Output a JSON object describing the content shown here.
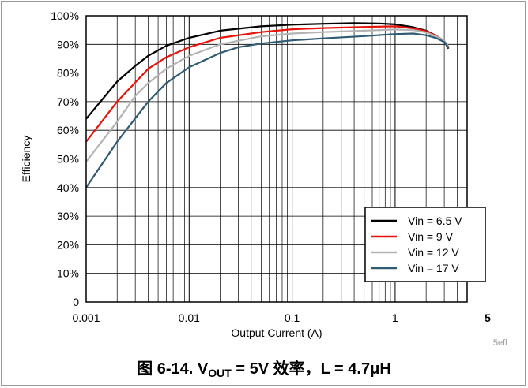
{
  "chart_data": {
    "type": "line",
    "xlabel": "Output Current (A)",
    "ylabel": "Efficiency",
    "x_scale": "log",
    "xlim": [
      0.001,
      5
    ],
    "ylim": [
      0,
      100
    ],
    "x_ticks": [
      {
        "value": 0.001,
        "label": "0.001"
      },
      {
        "value": 0.01,
        "label": "0.01"
      },
      {
        "value": 0.1,
        "label": "0.1"
      },
      {
        "value": 1,
        "label": "1"
      },
      {
        "value": 5,
        "label": "5"
      }
    ],
    "y_ticks": [
      {
        "value": 0,
        "label": "0"
      },
      {
        "value": 10,
        "label": "10%"
      },
      {
        "value": 20,
        "label": "20%"
      },
      {
        "value": 30,
        "label": "30%"
      },
      {
        "value": 40,
        "label": "40%"
      },
      {
        "value": 50,
        "label": "50%"
      },
      {
        "value": 60,
        "label": "60%"
      },
      {
        "value": 70,
        "label": "70%"
      },
      {
        "value": 80,
        "label": "80%"
      },
      {
        "value": 90,
        "label": "90%"
      },
      {
        "value": 100,
        "label": "100%"
      }
    ],
    "grid": true,
    "legend_position": "bottom-right",
    "series": [
      {
        "name": "Vin = 6.5 V",
        "color": "#000000",
        "points": [
          [
            0.001,
            64
          ],
          [
            0.002,
            77
          ],
          [
            0.003,
            82.5
          ],
          [
            0.004,
            86
          ],
          [
            0.006,
            89.5
          ],
          [
            0.01,
            92.3
          ],
          [
            0.02,
            94.8
          ],
          [
            0.05,
            96.3
          ],
          [
            0.1,
            96.9
          ],
          [
            0.2,
            97.2
          ],
          [
            0.4,
            97.4
          ],
          [
            0.7,
            97.3
          ],
          [
            1,
            97
          ],
          [
            1.5,
            96
          ],
          [
            2,
            94.8
          ],
          [
            2.5,
            93
          ],
          [
            3,
            91
          ],
          [
            3.3,
            88.5
          ]
        ]
      },
      {
        "name": "Vin = 9 V",
        "color": "#e8140c",
        "points": [
          [
            0.001,
            56
          ],
          [
            0.002,
            70
          ],
          [
            0.004,
            81.5
          ],
          [
            0.006,
            85.5
          ],
          [
            0.01,
            89
          ],
          [
            0.02,
            92.3
          ],
          [
            0.05,
            94.3
          ],
          [
            0.1,
            95.3
          ],
          [
            0.2,
            95.7
          ],
          [
            0.5,
            96.1
          ],
          [
            1,
            96.3
          ],
          [
            1.5,
            95.6
          ],
          [
            2,
            94.6
          ],
          [
            2.5,
            93
          ],
          [
            3,
            91.2
          ],
          [
            3.3,
            89
          ]
        ]
      },
      {
        "name": "Vin = 12 V",
        "color": "#b4b4b4",
        "points": [
          [
            0.001,
            49
          ],
          [
            0.002,
            63
          ],
          [
            0.003,
            72
          ],
          [
            0.004,
            76.5
          ],
          [
            0.006,
            81.5
          ],
          [
            0.01,
            86
          ],
          [
            0.02,
            90
          ],
          [
            0.05,
            92.8
          ],
          [
            0.1,
            93.8
          ],
          [
            0.2,
            94.3
          ],
          [
            0.5,
            94.8
          ],
          [
            1,
            95.2
          ],
          [
            1.5,
            95
          ],
          [
            2,
            94.2
          ],
          [
            2.5,
            92.8
          ],
          [
            3,
            91.2
          ],
          [
            3.3,
            89.2
          ]
        ]
      },
      {
        "name": "Vin = 17 V",
        "color": "#2f5b73",
        "points": [
          [
            0.001,
            40
          ],
          [
            0.002,
            56
          ],
          [
            0.004,
            70
          ],
          [
            0.006,
            76.5
          ],
          [
            0.01,
            82
          ],
          [
            0.02,
            87
          ],
          [
            0.03,
            89
          ],
          [
            0.05,
            90.3
          ],
          [
            0.1,
            91.4
          ],
          [
            0.2,
            92.1
          ],
          [
            0.5,
            92.9
          ],
          [
            1,
            93.6
          ],
          [
            1.5,
            93.8
          ],
          [
            2,
            93.2
          ],
          [
            2.5,
            92.2
          ],
          [
            3,
            90.8
          ],
          [
            3.3,
            88.8
          ]
        ]
      }
    ]
  },
  "watermark": "5eff",
  "caption": {
    "prefix": "图 6-14. V",
    "subscript": "OUT",
    "suffix": " = 5V 效率，L = 4.7μH"
  }
}
